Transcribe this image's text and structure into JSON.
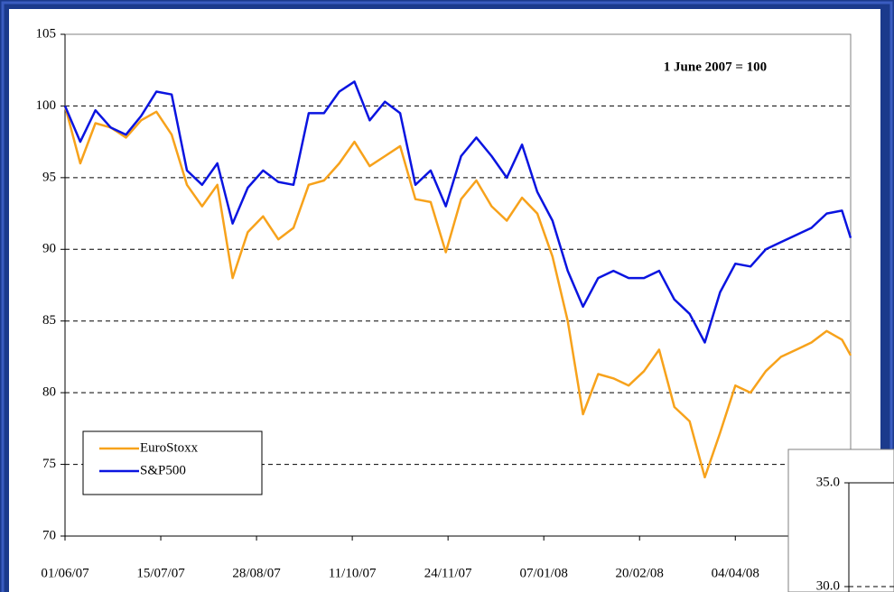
{
  "chart_data": [
    {
      "type": "line",
      "annotation": "1 June 2007 = 100",
      "x": [
        "01/06/07",
        "08/06/07",
        "15/06/07",
        "22/06/07",
        "29/06/07",
        "06/07/07",
        "13/07/07",
        "20/07/07",
        "27/07/07",
        "03/08/07",
        "10/08/07",
        "17/08/07",
        "24/08/07",
        "31/08/07",
        "07/09/07",
        "14/09/07",
        "21/09/07",
        "28/09/07",
        "05/10/07",
        "12/10/07",
        "19/10/07",
        "26/10/07",
        "02/11/07",
        "09/11/07",
        "16/11/07",
        "23/11/07",
        "30/11/07",
        "07/12/07",
        "14/12/07",
        "21/12/07",
        "28/12/07",
        "04/01/08",
        "11/01/08",
        "18/01/08",
        "25/01/08",
        "01/02/08",
        "08/02/08",
        "15/02/08",
        "22/02/08",
        "29/02/08",
        "07/03/08",
        "14/03/08",
        "21/03/08",
        "28/03/08",
        "04/04/08",
        "11/04/08",
        "18/04/08",
        "25/04/08",
        "02/05/08",
        "09/05/08",
        "16/05/08",
        "23/05/08",
        "27/05/08"
      ],
      "series": [
        {
          "name": "EuroStoxx",
          "color": "#f7a21b",
          "values": [
            100,
            96.0,
            98.8,
            98.5,
            97.8,
            99.0,
            99.6,
            98.0,
            94.5,
            93.0,
            94.5,
            88.0,
            91.2,
            92.3,
            90.7,
            91.5,
            94.5,
            94.8,
            96.0,
            97.5,
            95.8,
            96.5,
            97.2,
            93.5,
            93.3,
            89.8,
            93.5,
            94.8,
            93.0,
            92.0,
            93.6,
            92.5,
            89.5,
            85.0,
            78.5,
            81.3,
            81.0,
            80.5,
            81.5,
            83.0,
            79.0,
            78.0,
            74.1,
            77.2,
            80.5,
            80.0,
            81.5,
            82.5,
            83.0,
            83.5,
            84.3,
            83.7,
            82.6
          ]
        },
        {
          "name": "S&P500",
          "color": "#0a14e0",
          "values": [
            100,
            97.5,
            99.7,
            98.5,
            98.0,
            99.3,
            101.0,
            100.8,
            95.5,
            94.5,
            96.0,
            91.8,
            94.3,
            95.5,
            94.7,
            94.5,
            99.5,
            99.5,
            101.0,
            101.7,
            99.0,
            100.3,
            99.5,
            94.5,
            95.5,
            93.0,
            96.5,
            97.8,
            96.5,
            95.0,
            97.3,
            94.0,
            92.0,
            88.5,
            86.0,
            88.0,
            88.5,
            88.0,
            88.0,
            88.5,
            86.5,
            85.5,
            83.5,
            87.0,
            89.0,
            88.8,
            90.0,
            90.5,
            91.0,
            91.5,
            92.5,
            92.7,
            90.8
          ]
        }
      ],
      "xlim": [
        "01/06/07",
        "27/05/08"
      ],
      "xticks": [
        "01/06/07",
        "15/07/07",
        "28/08/07",
        "11/10/07",
        "24/11/07",
        "07/01/08",
        "20/02/08",
        "04/04/08"
      ],
      "ylim": [
        70,
        105
      ],
      "yticks": [
        70,
        75,
        80,
        85,
        90,
        95,
        100,
        105
      ],
      "grid": true,
      "legend": "lower left"
    },
    {
      "type": "line",
      "ylim": [
        30,
        35
      ],
      "yticks": [
        {
          "value": 35,
          "label": "35.0"
        },
        {
          "value": 30,
          "label": "30.0"
        }
      ],
      "grid": true
    }
  ]
}
